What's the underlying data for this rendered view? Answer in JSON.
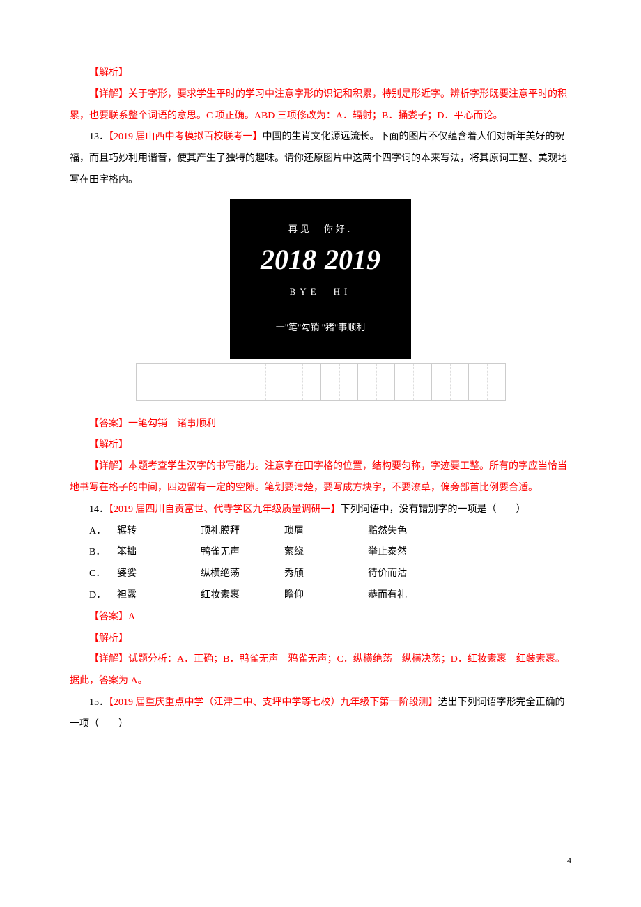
{
  "colors": {
    "red": "#ff0000",
    "black": "#000000",
    "bg": "#ffffff",
    "grid_border": "#cccccc",
    "grid_dash": "#dddddd"
  },
  "block1": {
    "jiexi_label": "【解析】",
    "xiangjie_label": "【详解】",
    "xiangjie_text": "关于字形，要求学生平时的学习中注意字形的识记和积累，特别是形近字。辨析字形既要注意平时的积累，也要联系整个词语的意思。C 项正确。ABD 三项修改为：A．辐射；B．捅娄子；D．平心而论。"
  },
  "q13": {
    "number": "13．",
    "source": "【2019 届山西中考模拟百校联考一】",
    "text": "中国的生肖文化源远流长。下面的图片不仅蕴含着人们对新年美好的祝福，而且巧妙利用谐音，使其产生了独特的趣味。请你还原图片中这两个四字词的本来写法，将其原词工整、美观地写在田字格内。",
    "card": {
      "top_left": "再见",
      "top_right": "你好.",
      "year_left": "2018",
      "year_right": "2019",
      "bye": "BYE",
      "hi": "HI",
      "bottom": "一\"笔\"勾销 \"猪\"事顺利"
    },
    "grid_cols": 10,
    "daan_label": "【答案】",
    "daan_text": "一笔勾销　诸事顺利",
    "jiexi_label": "【解析】",
    "xiangjie_label": "【详解】",
    "xiangjie_text": "本题考查学生汉字的书写能力。注意字在田字格的位置，结构要匀称，字迹要工整。所有的字应当恰当地书写在格子的中间，四边留有一定的空隙。笔划要清楚，要写成方块字，不要潦草，偏旁部首比例要合适。"
  },
  "q14": {
    "number": "14．",
    "source": "【2019 届四川自贡富世、代寺学区九年级质量调研一】",
    "text": "下列词语中，没有错别字的一项是（　　）",
    "options": [
      {
        "label": "A．",
        "c1": "辗转",
        "c2": "顶礼膜拜",
        "c3": "琐屑",
        "c4": "黯然失色"
      },
      {
        "label": "B．",
        "c1": "笨拙",
        "c2": "鸭雀无声",
        "c3": "萦绕",
        "c4": "举止泰然"
      },
      {
        "label": "C．",
        "c1": "婆娑",
        "c2": "纵横绝荡",
        "c3": "秀颀",
        "c4": "待价而沽"
      },
      {
        "label": "D．",
        "c1": "袒露",
        "c2": "红妆素裹",
        "c3": "瞻仰",
        "c4": "恭而有礼"
      }
    ],
    "daan_label": "【答案】",
    "daan_text": "A",
    "jiexi_label": "【解析】",
    "xiangjie_label": "【详解】",
    "xiangjie_text": "试题分析：A．正确；B．鸭雀无声－鸦雀无声；C．纵横绝荡－纵横决荡；D．红妆素裹－红装素裹。据此，答案为 A。"
  },
  "q15": {
    "number": "15．",
    "source": "【2019 届重庆重点中学（江津二中、支坪中学等七校）九年级下第一阶段测】",
    "text": "选出下列词语字形完全正确的一项（　　）"
  },
  "page_number": "4"
}
